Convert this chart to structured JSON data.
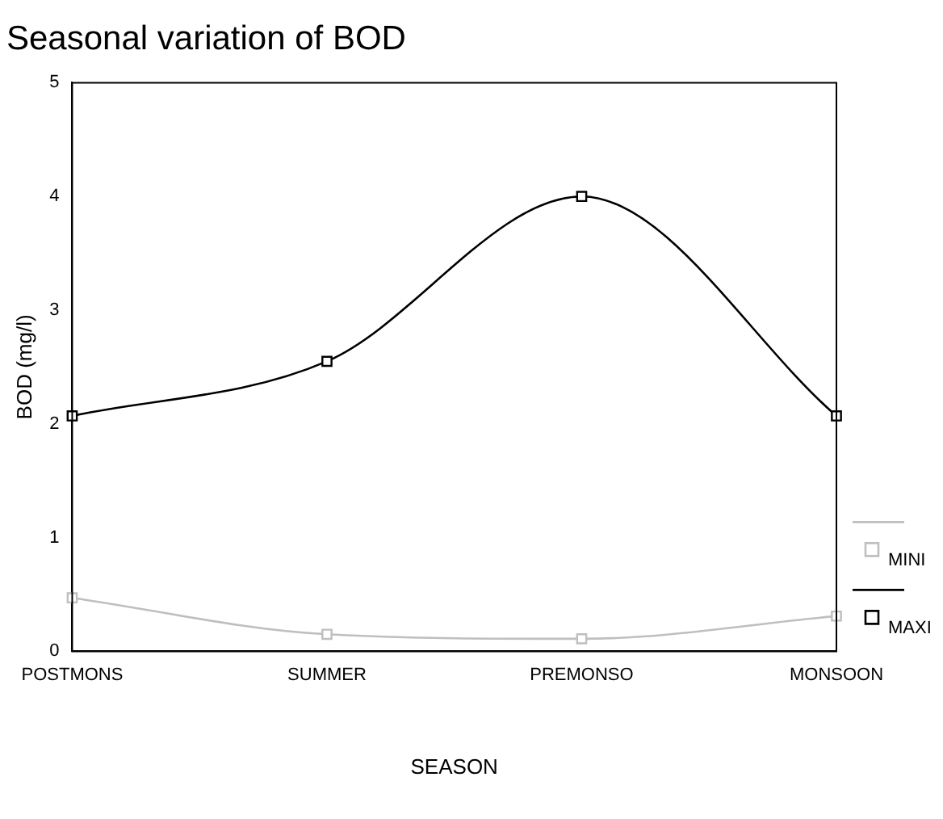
{
  "chart_data": {
    "type": "line",
    "title": "Seasonal variation of BOD",
    "xlabel": "SEASON",
    "ylabel": "BOD (mg/l)",
    "categories": [
      "POSTMONS",
      "SUMMER",
      "PREMONSO",
      "MONSOON"
    ],
    "series": [
      {
        "name": "MINI",
        "color": "#bfbfbf",
        "values": [
          0.47,
          0.15,
          0.11,
          0.31
        ]
      },
      {
        "name": "MAXI",
        "color": "#000000",
        "values": [
          2.07,
          2.55,
          4.0,
          2.07
        ]
      }
    ],
    "ylim": [
      0,
      5
    ],
    "yticks": [
      0,
      1,
      2,
      3,
      4,
      5
    ],
    "grid": false,
    "legend": "right",
    "marker": "square",
    "line_style": "solid"
  }
}
